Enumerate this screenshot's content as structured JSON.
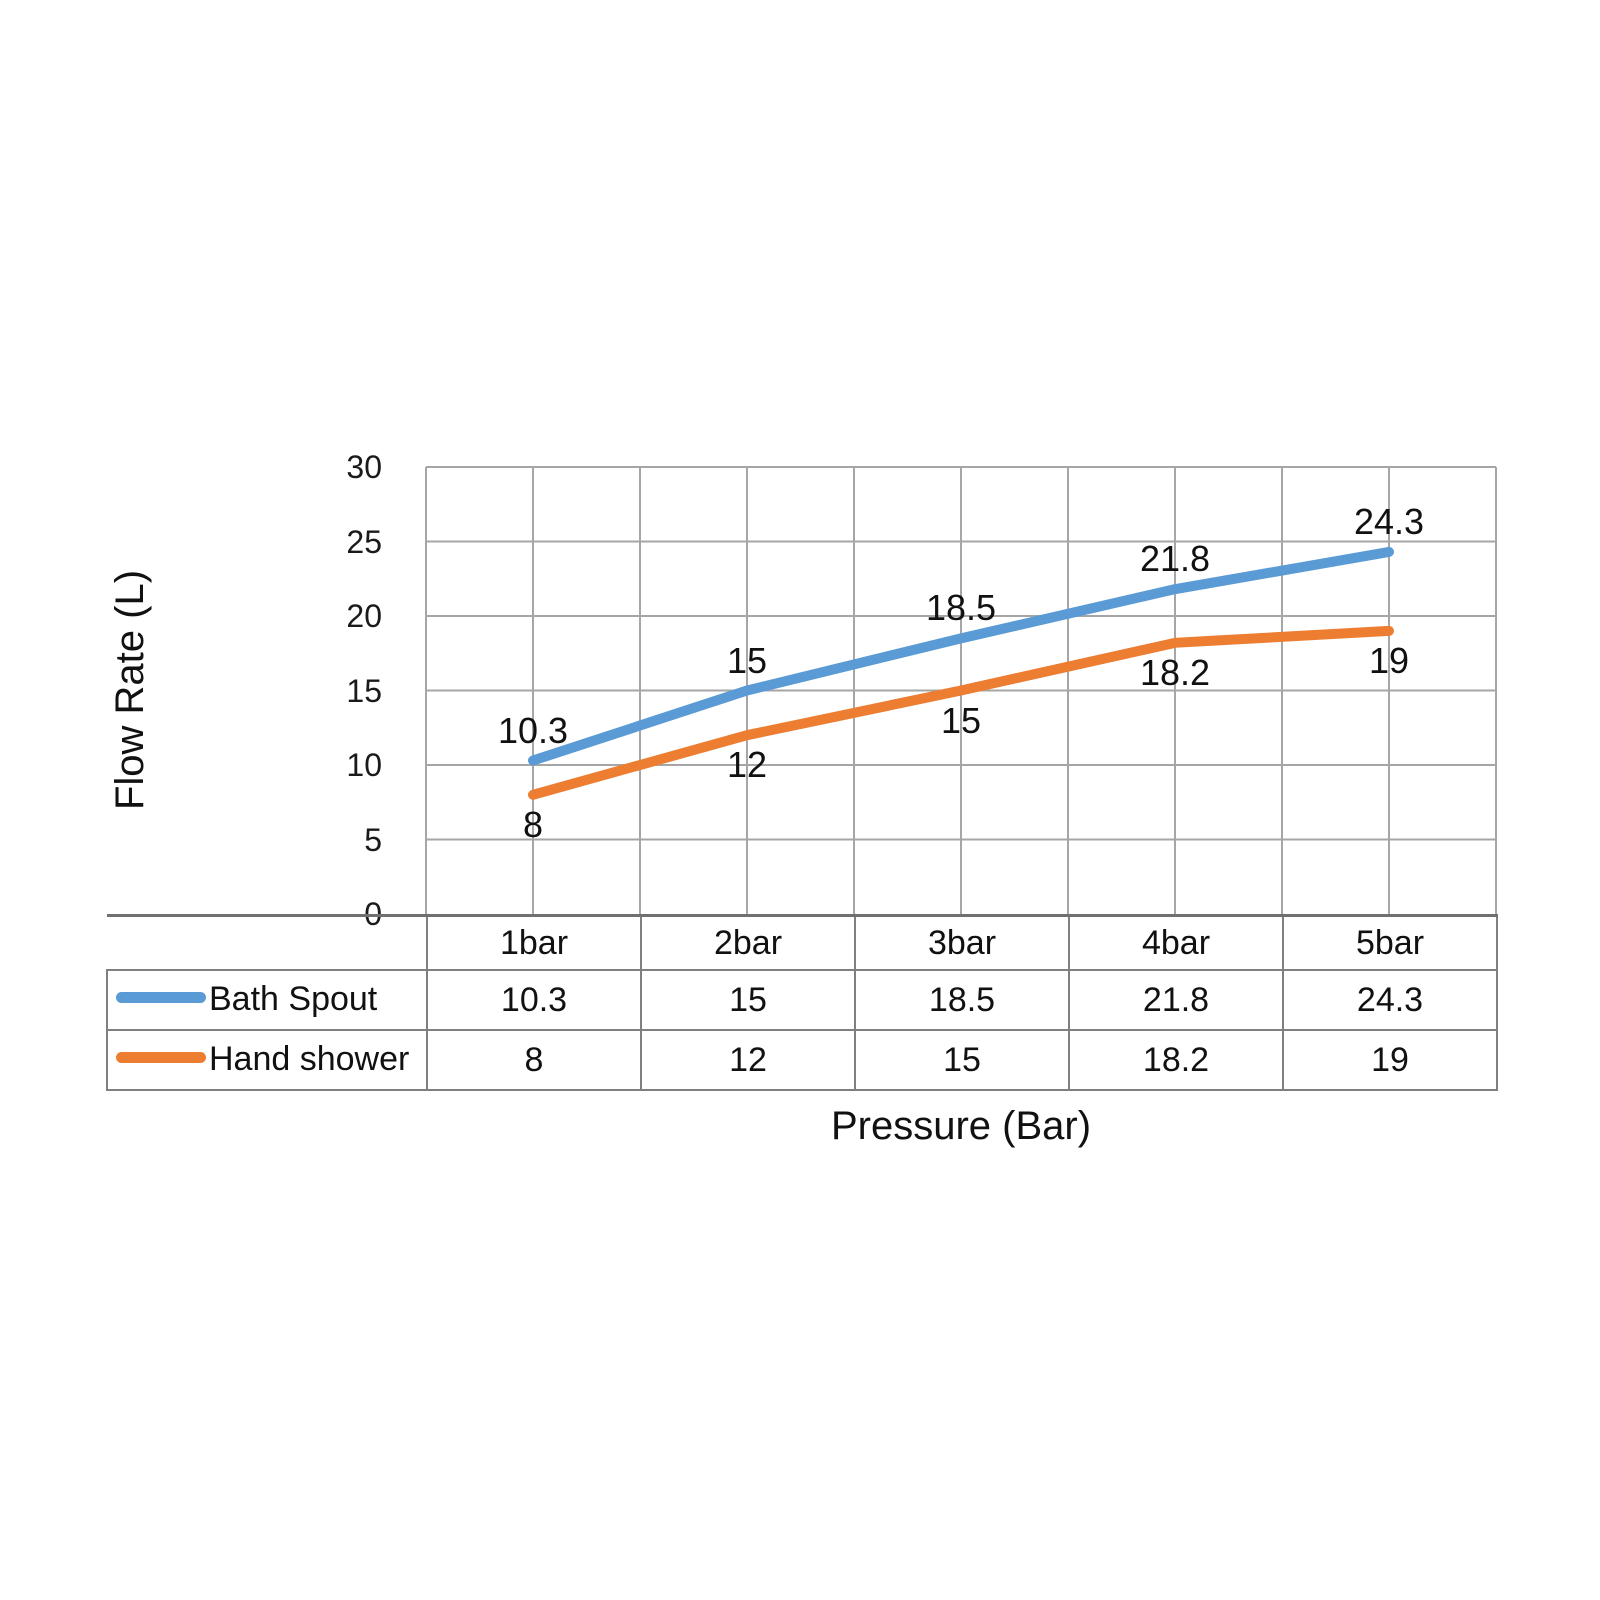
{
  "chart_data": {
    "type": "line",
    "categories": [
      "1bar",
      "2bar",
      "3bar",
      "4bar",
      "5bar"
    ],
    "series": [
      {
        "name": "Bath Spout",
        "values": [
          10.3,
          15,
          18.5,
          21.8,
          24.3
        ],
        "color": "#5B9BD5"
      },
      {
        "name": "Hand shower",
        "values": [
          8,
          12,
          15,
          18.2,
          19
        ],
        "color": "#ED7D31"
      }
    ],
    "xlabel": "Pressure (Bar)",
    "ylabel": "Flow Rate (L)",
    "ylim": [
      0,
      30
    ],
    "yticks": [
      0,
      5,
      10,
      15,
      20,
      25,
      30
    ],
    "grid": true,
    "grid_color": "#A6A6A6",
    "axis_line_color": "#707070",
    "table_border_color": "#808080",
    "text_color": "#111111",
    "legend_position": "table-left",
    "data_labels": true
  }
}
